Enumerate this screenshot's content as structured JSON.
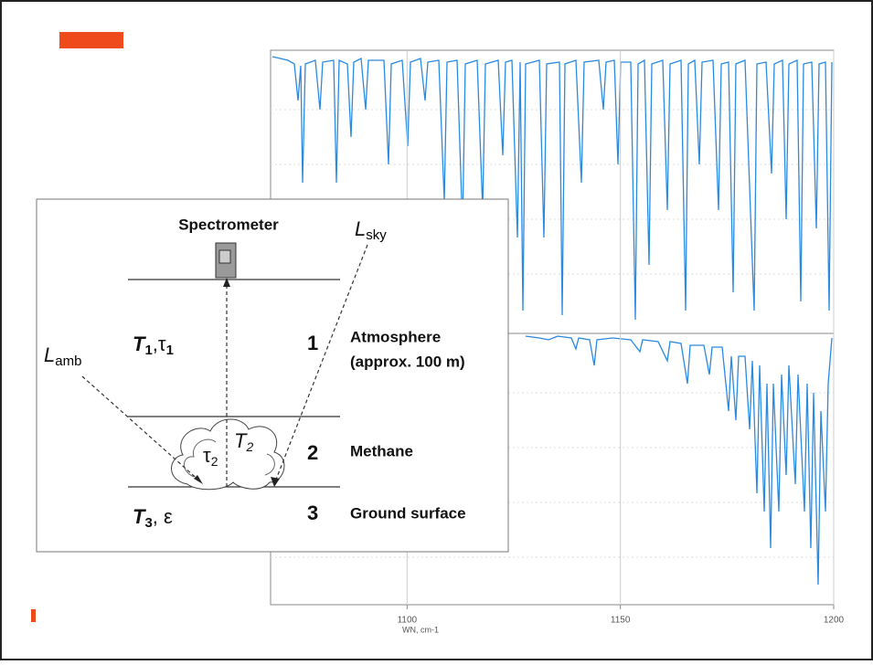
{
  "diagram": {
    "spectrometer": "Spectrometer",
    "l_sky": {
      "base": "L",
      "sub": "sky"
    },
    "l_amb": {
      "base": "L",
      "sub": "amb"
    },
    "layer1": {
      "parts": [
        "T",
        "1",
        ",τ",
        "1"
      ],
      "number": "1",
      "name": "Atmosphere",
      "note": "(approx. 100 m)"
    },
    "layer2": {
      "tau": [
        "τ",
        "2"
      ],
      "temp": [
        "T",
        "2"
      ],
      "number": "2",
      "name": "Methane"
    },
    "layer3": {
      "parts": [
        "T",
        "3",
        ", ε"
      ],
      "number": "3",
      "name": "Ground surface"
    }
  },
  "spectrum": {
    "xlim": [
      1068,
      1200
    ],
    "xticks": [
      1100,
      1150,
      1200
    ],
    "xlabel": "WN, cm-1"
  }
}
